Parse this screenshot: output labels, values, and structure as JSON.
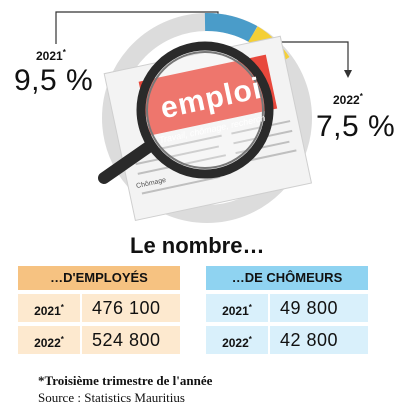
{
  "top": {
    "y2021": "2021",
    "sup2021": "*",
    "pct2021": "9,5 %",
    "y2022": "2022",
    "sup2022": "*",
    "pct2022": "7,5 %"
  },
  "paper": {
    "headline": "emploi",
    "subline": "Travail, chômage, recherch",
    "fragment": "Chômage"
  },
  "colors": {
    "blue": "#4a9cc9",
    "yellow": "#f4cf36",
    "ring_grey": "#dcdcdc",
    "red_paper": "#e8483c",
    "orange_header": "#f6c281",
    "blue_header": "#8fd3f1"
  },
  "levels": {
    "chomage_2021_pct": 9.5,
    "chomage_2022_pct": 7.5
  },
  "section_title": "Le nombre…",
  "employes": {
    "header": "…D'EMPLOYÉS",
    "rows": [
      {
        "year": "2021",
        "sup": "*",
        "value": "476 100"
      },
      {
        "year": "2022",
        "sup": "*",
        "value": "524 800"
      }
    ]
  },
  "chomeurs": {
    "header": "…DE CHÔMEURS",
    "rows": [
      {
        "year": "2021",
        "sup": "*",
        "value": "49 800"
      },
      {
        "year": "2022",
        "sup": "*",
        "value": "42 800"
      }
    ]
  },
  "footnote": "*Troisième trimestre de l'année",
  "source": "Source : Statistics Mauritius"
}
